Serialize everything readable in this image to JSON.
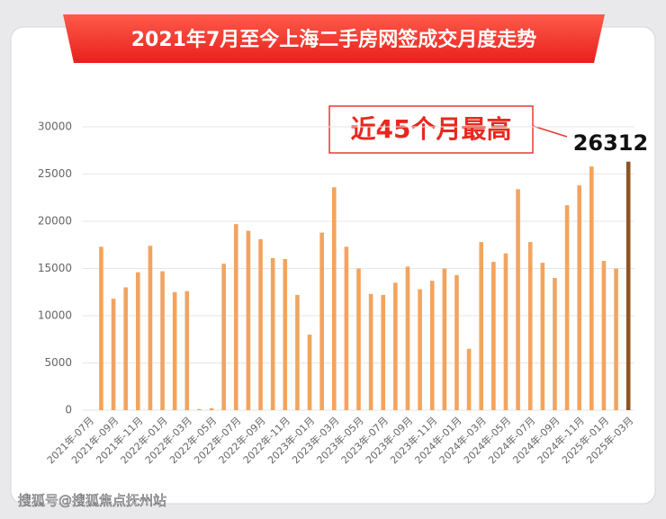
{
  "chart_data": {
    "type": "bar",
    "title": "2021年7月至今上海二手房网签成交月度走势",
    "annotation": "近45个月最高",
    "watermark": "搜狐号@搜狐焦点抚州站",
    "categories": [
      "2021年-07月",
      null,
      "2021年-09月",
      null,
      "2021年-11月",
      null,
      "2022年-01月",
      null,
      "2022年-03月",
      null,
      "2022年-05月",
      null,
      "2022年-07月",
      null,
      "2022年-09月",
      null,
      "2022年-11月",
      null,
      "2023年-01月",
      null,
      "2023年-03月",
      null,
      "2023年-05月",
      null,
      "2023年-07月",
      null,
      "2023年-09月",
      null,
      "2023年-11月",
      null,
      "2024年-01月",
      null,
      "2024年-03月",
      null,
      "2024年-05月",
      null,
      "2024年-07月",
      null,
      "2024年-09月",
      null,
      "2024年-11月",
      null,
      "2025年-01月",
      null,
      "2025年-03月"
    ],
    "values": [
      null,
      17300,
      11800,
      13000,
      14600,
      17400,
      14700,
      12500,
      12600,
      100,
      200,
      15500,
      19700,
      19000,
      18100,
      16100,
      16000,
      12200,
      8000,
      18800,
      23600,
      17300,
      15000,
      12300,
      12200,
      13500,
      15200,
      12800,
      13700,
      15000,
      14300,
      6500,
      17800,
      15700,
      16600,
      23400,
      17800,
      15600,
      14000,
      21700,
      23800,
      25800,
      15800,
      15000,
      26312
    ],
    "color": "#f2a45f",
    "last_color": "#8e5522",
    "ylim": [
      0,
      30000
    ],
    "yticks": [
      0,
      5000,
      10000,
      15000,
      20000,
      25000,
      30000
    ],
    "grid": true
  }
}
